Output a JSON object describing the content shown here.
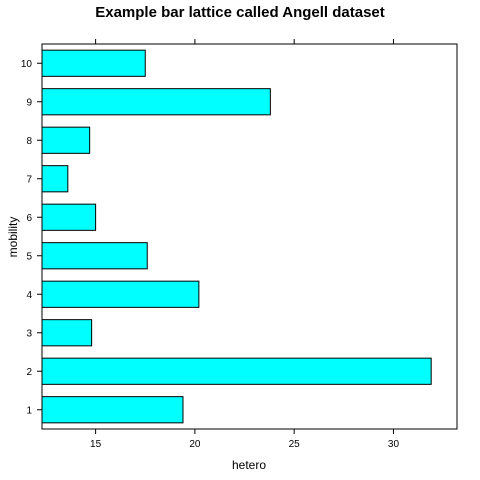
{
  "chart_data": {
    "type": "bar",
    "orientation": "horizontal",
    "title": "Example bar lattice called Angell dataset",
    "xlabel": "hetero",
    "ylabel": "mobility",
    "categories": [
      "1",
      "2",
      "3",
      "4",
      "5",
      "6",
      "7",
      "8",
      "9",
      "10"
    ],
    "values": [
      19.4,
      31.9,
      14.8,
      20.2,
      17.6,
      15.0,
      13.6,
      14.7,
      23.8,
      17.5
    ],
    "xlim": [
      12.3,
      33.2
    ],
    "xticks": [
      15,
      20,
      25,
      30
    ],
    "x_tick_labels": [
      "15",
      "20",
      "25",
      "30"
    ],
    "bar_color": "#00ffff",
    "grid": false,
    "legend": "none"
  }
}
